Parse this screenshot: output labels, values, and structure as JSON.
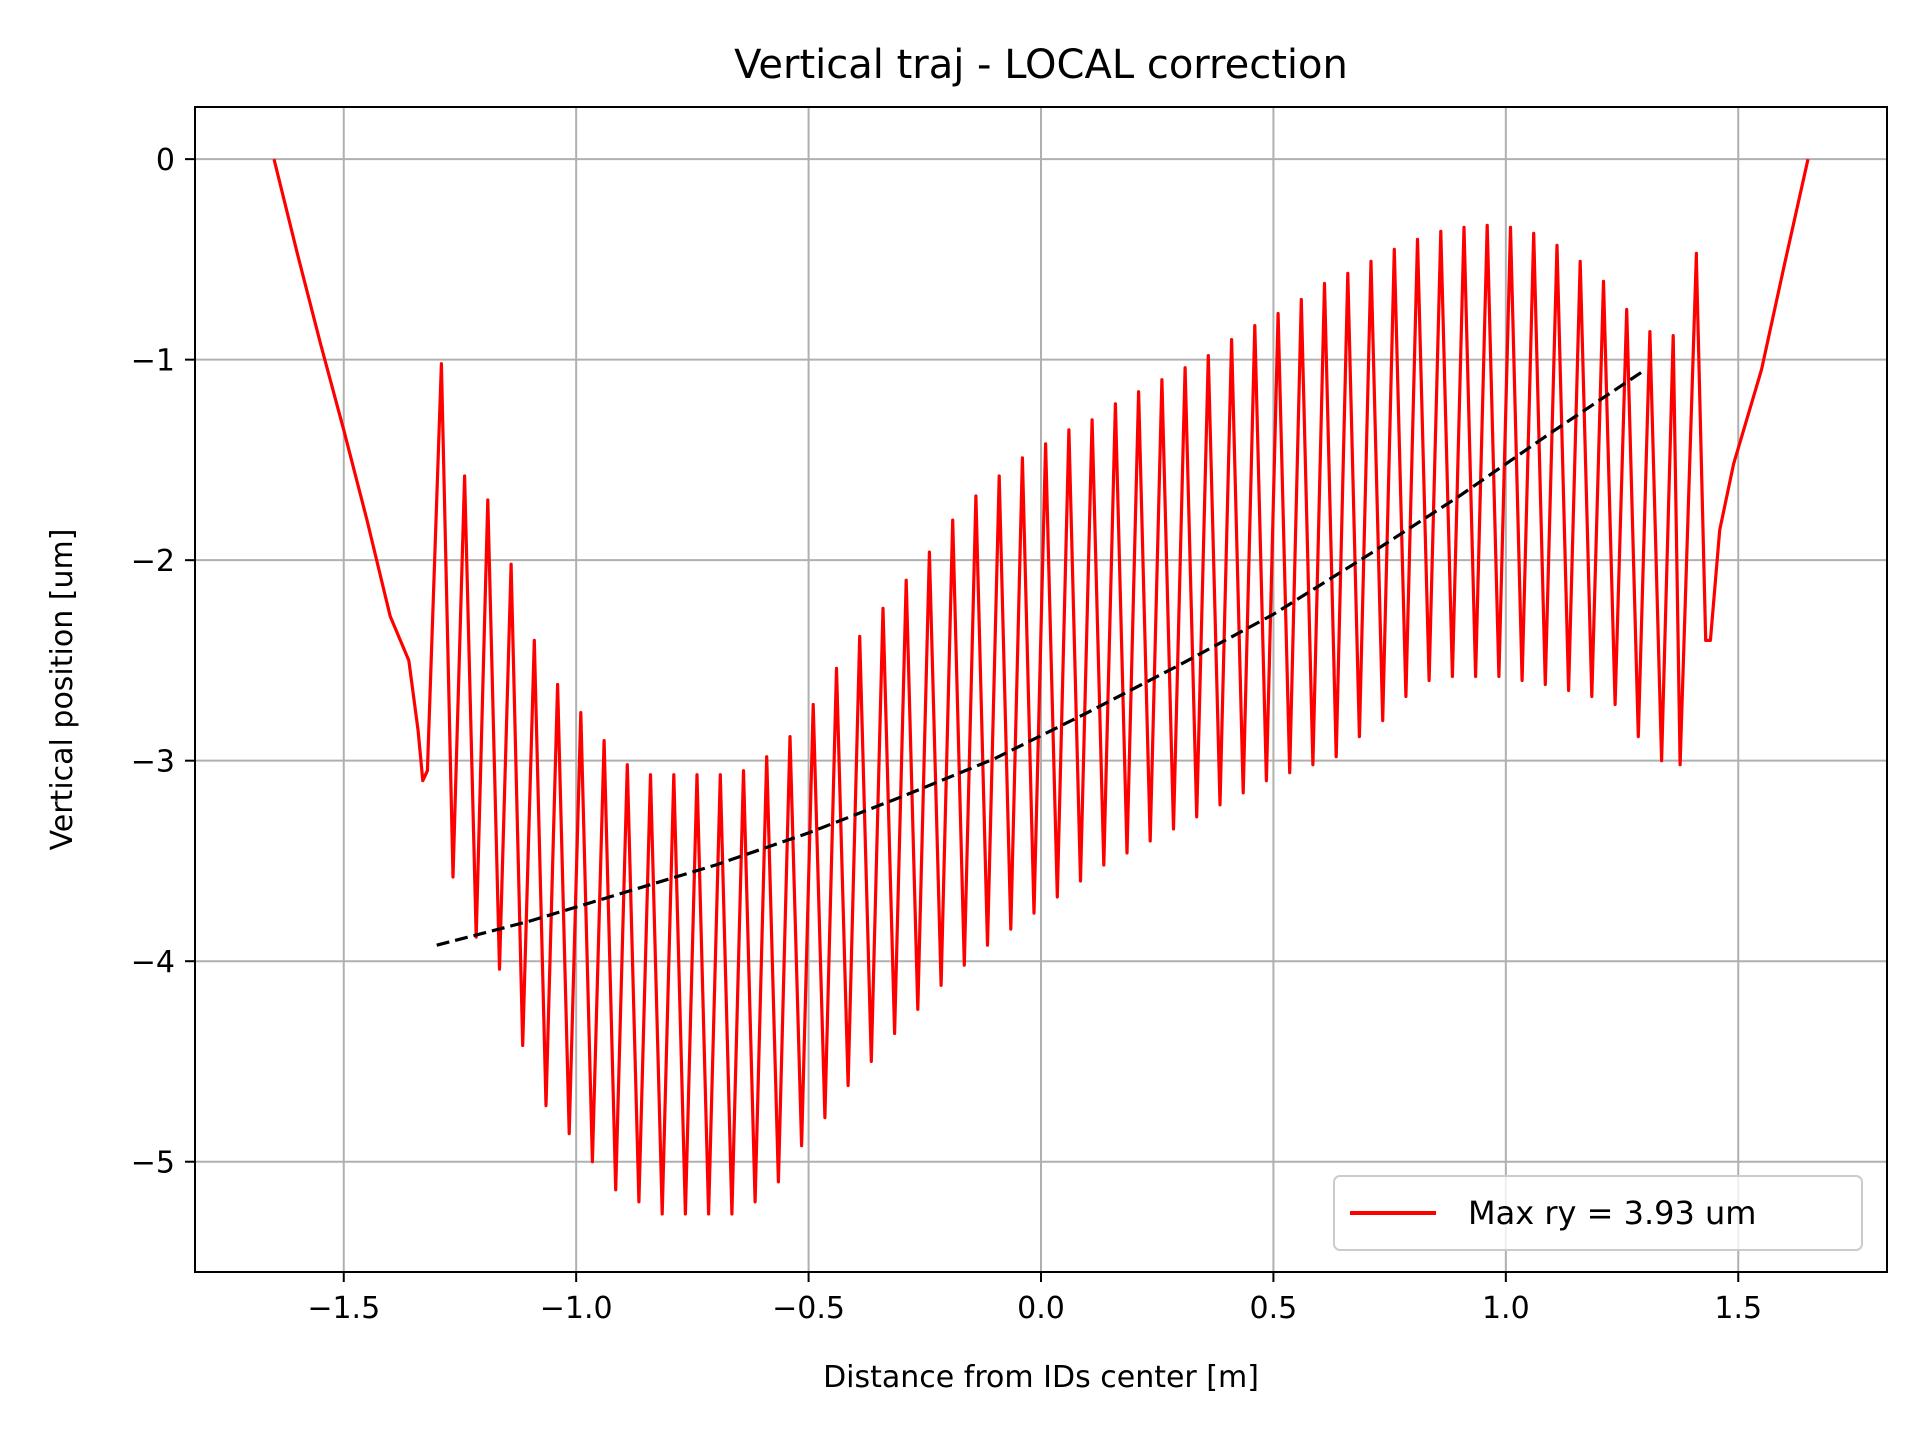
{
  "chart_data": {
    "type": "line",
    "title": "Vertical traj - LOCAL correction",
    "xlabel": "Distance from IDs center [m]",
    "ylabel": "Vertical position [um]",
    "xlim": [
      -1.82,
      1.82
    ],
    "ylim": [
      -5.55,
      0.26
    ],
    "grid": true,
    "legend_position": "bottom-right",
    "x_ticks": [
      -1.5,
      -1.0,
      -0.5,
      0.0,
      0.5,
      1.0,
      1.5
    ],
    "x_tick_labels": [
      "−1.5",
      "−1.0",
      "−0.5",
      "0.0",
      "0.5",
      "1.0",
      "1.5"
    ],
    "y_ticks": [
      0,
      -1,
      -2,
      -3,
      -4,
      -5
    ],
    "y_tick_labels": [
      "0",
      "−1",
      "−2",
      "−3",
      "−4",
      "−5"
    ],
    "series": [
      {
        "name": "Max ry = 3.93 um",
        "color": "#ff0000",
        "style": "solid",
        "x": [
          -1.65,
          -1.6,
          -1.55,
          -1.5,
          -1.45,
          -1.4,
          -1.36,
          -1.34,
          -1.33,
          -1.32
        ],
        "y": [
          0.0,
          -0.47,
          -0.92,
          -1.35,
          -1.8,
          -2.28,
          -2.5,
          -2.85,
          -3.1,
          -3.05
        ]
      },
      {
        "name": "",
        "color": "#000000",
        "style": "dashed",
        "x": [
          -1.3,
          -1.1,
          -0.9,
          -0.7,
          -0.5,
          -0.3,
          -0.1,
          0.1,
          0.3,
          0.5,
          0.7,
          0.9,
          1.1,
          1.3
        ],
        "y": [
          -3.92,
          -3.8,
          -3.66,
          -3.52,
          -3.36,
          -3.18,
          -2.99,
          -2.76,
          -2.52,
          -2.27,
          -1.98,
          -1.68,
          -1.36,
          -1.05
        ]
      }
    ],
    "oscillation": {
      "x_start": -1.31,
      "x_end": 1.385,
      "peaks": [
        [
          -1.29,
          -1.02
        ],
        [
          -1.24,
          -1.58
        ],
        [
          -1.19,
          -1.7
        ],
        [
          -1.14,
          -2.02
        ],
        [
          -1.09,
          -2.4
        ],
        [
          -1.04,
          -2.62
        ],
        [
          -0.99,
          -2.76
        ],
        [
          -0.94,
          -2.9
        ],
        [
          -0.89,
          -3.02
        ],
        [
          -0.84,
          -3.07
        ],
        [
          -0.79,
          -3.07
        ],
        [
          -0.74,
          -3.07
        ],
        [
          -0.69,
          -3.07
        ],
        [
          -0.64,
          -3.05
        ],
        [
          -0.59,
          -2.98
        ],
        [
          -0.54,
          -2.88
        ],
        [
          -0.49,
          -2.72
        ],
        [
          -0.44,
          -2.54
        ],
        [
          -0.39,
          -2.38
        ],
        [
          -0.34,
          -2.24
        ],
        [
          -0.29,
          -2.1
        ],
        [
          -0.24,
          -1.96
        ],
        [
          -0.19,
          -1.8
        ],
        [
          -0.14,
          -1.68
        ],
        [
          -0.09,
          -1.58
        ],
        [
          -0.04,
          -1.49
        ],
        [
          0.01,
          -1.42
        ],
        [
          0.06,
          -1.35
        ],
        [
          0.11,
          -1.3
        ],
        [
          0.16,
          -1.22
        ],
        [
          0.21,
          -1.16
        ],
        [
          0.26,
          -1.1
        ],
        [
          0.31,
          -1.04
        ],
        [
          0.36,
          -0.98
        ],
        [
          0.41,
          -0.9
        ],
        [
          0.46,
          -0.83
        ],
        [
          0.51,
          -0.77
        ],
        [
          0.56,
          -0.7
        ],
        [
          0.61,
          -0.62
        ],
        [
          0.66,
          -0.57
        ],
        [
          0.71,
          -0.51
        ],
        [
          0.76,
          -0.45
        ],
        [
          0.81,
          -0.4
        ],
        [
          0.86,
          -0.36
        ],
        [
          0.91,
          -0.34
        ],
        [
          0.96,
          -0.33
        ],
        [
          1.01,
          -0.34
        ],
        [
          1.06,
          -0.37
        ],
        [
          1.11,
          -0.43
        ],
        [
          1.16,
          -0.51
        ],
        [
          1.21,
          -0.61
        ],
        [
          1.26,
          -0.75
        ],
        [
          1.31,
          -0.86
        ],
        [
          1.36,
          -0.88
        ],
        [
          1.41,
          -0.47
        ]
      ],
      "troughs": [
        [
          -1.265,
          -3.58
        ],
        [
          -1.215,
          -3.88
        ],
        [
          -1.165,
          -4.04
        ],
        [
          -1.115,
          -4.42
        ],
        [
          -1.065,
          -4.72
        ],
        [
          -1.015,
          -4.86
        ],
        [
          -0.965,
          -5.0
        ],
        [
          -0.915,
          -5.14
        ],
        [
          -0.865,
          -5.2
        ],
        [
          -0.815,
          -5.26
        ],
        [
          -0.765,
          -5.26
        ],
        [
          -0.715,
          -5.26
        ],
        [
          -0.665,
          -5.26
        ],
        [
          -0.615,
          -5.2
        ],
        [
          -0.565,
          -5.1
        ],
        [
          -0.515,
          -4.92
        ],
        [
          -0.465,
          -4.78
        ],
        [
          -0.415,
          -4.62
        ],
        [
          -0.365,
          -4.5
        ],
        [
          -0.315,
          -4.36
        ],
        [
          -0.265,
          -4.24
        ],
        [
          -0.215,
          -4.12
        ],
        [
          -0.165,
          -4.02
        ],
        [
          -0.115,
          -3.92
        ],
        [
          -0.065,
          -3.84
        ],
        [
          -0.015,
          -3.76
        ],
        [
          0.035,
          -3.68
        ],
        [
          0.085,
          -3.6
        ],
        [
          0.135,
          -3.52
        ],
        [
          0.185,
          -3.46
        ],
        [
          0.235,
          -3.4
        ],
        [
          0.285,
          -3.34
        ],
        [
          0.335,
          -3.28
        ],
        [
          0.385,
          -3.22
        ],
        [
          0.435,
          -3.16
        ],
        [
          0.485,
          -3.1
        ],
        [
          0.535,
          -3.06
        ],
        [
          0.585,
          -3.02
        ],
        [
          0.635,
          -2.98
        ],
        [
          0.685,
          -2.88
        ],
        [
          0.735,
          -2.8
        ],
        [
          0.785,
          -2.68
        ],
        [
          0.835,
          -2.6
        ],
        [
          0.885,
          -2.58
        ],
        [
          0.935,
          -2.58
        ],
        [
          0.985,
          -2.58
        ],
        [
          1.035,
          -2.6
        ],
        [
          1.085,
          -2.62
        ],
        [
          1.135,
          -2.65
        ],
        [
          1.185,
          -2.68
        ],
        [
          1.235,
          -2.72
        ],
        [
          1.285,
          -2.88
        ],
        [
          1.335,
          -3.0
        ],
        [
          1.375,
          -3.02
        ]
      ]
    },
    "tail": {
      "x": [
        1.41,
        1.43,
        1.44,
        1.46,
        1.49,
        1.55,
        1.6,
        1.65
      ],
      "y": [
        -0.5,
        -2.4,
        -2.4,
        -1.85,
        -1.52,
        -1.05,
        -0.52,
        0.0
      ]
    }
  }
}
